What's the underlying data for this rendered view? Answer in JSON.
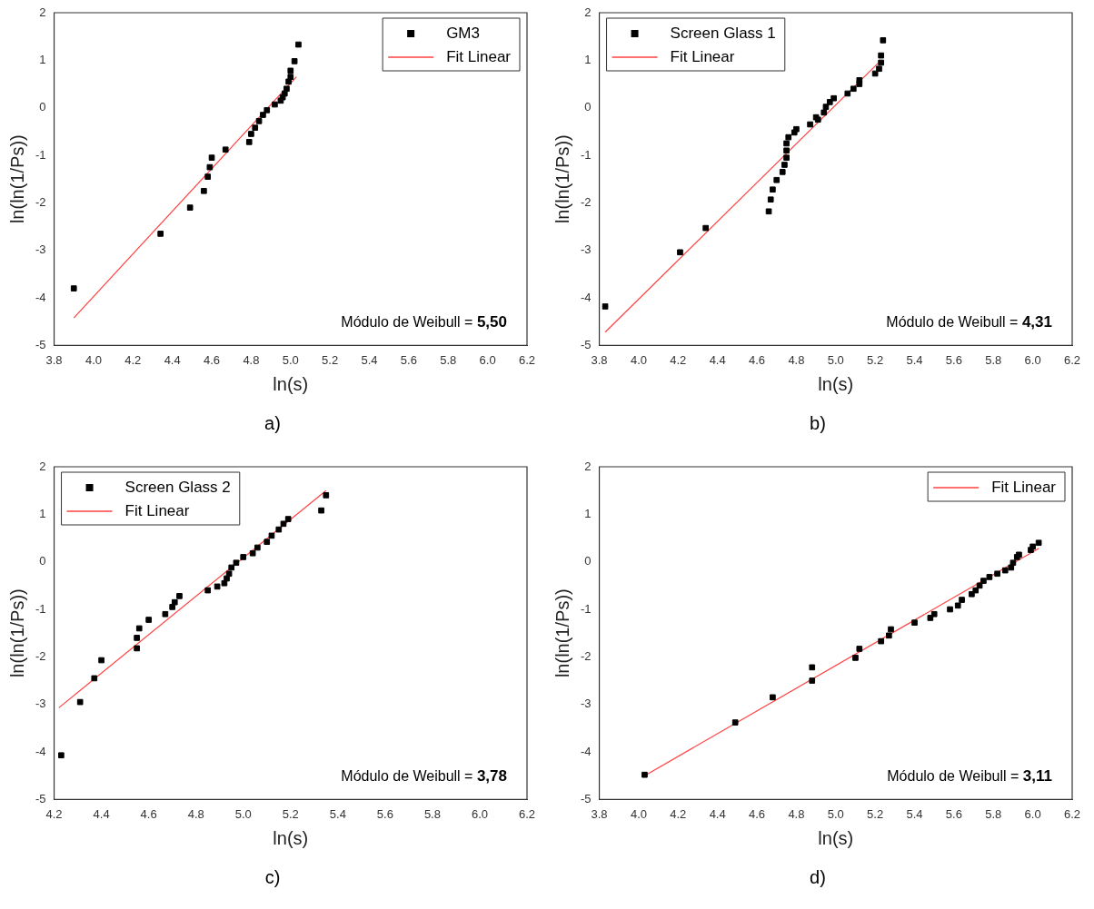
{
  "chart_data": [
    {
      "type": "scatter",
      "xlabel": "ln(s)",
      "ylabel": "ln(ln(1/Ps))",
      "annotations": [
        "Módulo de Weibull = 5,50",
        "a)"
      ],
      "legend": "top right",
      "grid": false,
      "xlim": [
        3.8,
        6.2
      ],
      "xticks": [
        3.8,
        {
          "value": 4,
          "label": "4.0"
        },
        4.2,
        4.4,
        4.6,
        4.8,
        {
          "value": 5,
          "label": "5.0"
        },
        5.2,
        5.4,
        5.6,
        5.8,
        {
          "value": 6,
          "label": "6.0"
        },
        6.2
      ],
      "ylim": [
        -5,
        2
      ],
      "yticks": [
        -5,
        -4,
        -3,
        -2,
        -1,
        0,
        1,
        2
      ],
      "series": [
        {
          "name": "GM3",
          "marker": "square",
          "color": "#000000",
          "x": [
            3.9,
            4.34,
            4.49,
            4.56,
            4.58,
            4.59,
            4.6,
            4.67,
            4.79,
            4.8,
            4.82,
            4.84,
            4.86,
            4.88,
            4.92,
            4.95,
            4.96,
            4.97,
            4.98,
            4.99,
            5.0,
            5.0,
            5.02,
            5.04
          ],
          "values": [
            -3.8,
            -2.65,
            -2.1,
            -1.75,
            -1.45,
            -1.25,
            -1.05,
            -0.88,
            -0.72,
            -0.55,
            -0.42,
            -0.28,
            -0.15,
            -0.05,
            0.07,
            0.15,
            0.22,
            0.3,
            0.4,
            0.55,
            0.65,
            0.78,
            0.98,
            1.33
          ]
        },
        {
          "name": "Fit Linear",
          "type": "line",
          "marker": "none",
          "color": "#ff4040",
          "x": [
            3.9,
            5.03
          ],
          "values": [
            -4.42,
            0.65
          ]
        }
      ]
    },
    {
      "type": "scatter",
      "xlabel": "ln(s)",
      "ylabel": "ln(ln(1/Ps))",
      "annotations": [
        "Módulo de Weibull = 4,31",
        "b)"
      ],
      "legend": "top left",
      "grid": false,
      "xlim": [
        3.8,
        6.2
      ],
      "xticks": [
        3.8,
        {
          "value": 4,
          "label": "4.0"
        },
        4.2,
        4.4,
        4.6,
        4.8,
        {
          "value": 5,
          "label": "5.0"
        },
        5.2,
        5.4,
        5.6,
        5.8,
        {
          "value": 6,
          "label": "6.0"
        },
        6.2
      ],
      "ylim": [
        -5,
        2
      ],
      "yticks": [
        -5,
        -4,
        -3,
        -2,
        -1,
        0,
        1,
        2
      ],
      "series": [
        {
          "name": "Screen Glass 1",
          "marker": "square",
          "color": "#000000",
          "x": [
            3.83,
            4.21,
            4.34,
            4.66,
            4.67,
            4.68,
            4.7,
            4.73,
            4.74,
            4.75,
            4.75,
            4.75,
            4.76,
            4.79,
            4.8,
            4.87,
            4.9,
            4.91,
            4.94,
            4.95,
            4.97,
            4.99,
            5.06,
            5.09,
            5.12,
            5.12,
            5.2,
            5.22,
            5.23,
            5.23,
            5.24
          ],
          "values": [
            -4.18,
            -3.04,
            -2.53,
            -2.18,
            -1.93,
            -1.72,
            -1.52,
            -1.35,
            -1.2,
            -1.05,
            -0.9,
            -0.75,
            -0.62,
            -0.52,
            -0.45,
            -0.35,
            -0.2,
            -0.25,
            -0.1,
            0.02,
            0.12,
            0.2,
            0.3,
            0.4,
            0.5,
            0.58,
            0.72,
            0.82,
            0.95,
            1.1,
            1.42
          ]
        },
        {
          "name": "Fit Linear",
          "type": "line",
          "marker": "none",
          "color": "#ff4040",
          "x": [
            3.83,
            5.23
          ],
          "values": [
            -4.72,
            1.0
          ]
        }
      ]
    },
    {
      "type": "scatter",
      "xlabel": "ln(s)",
      "ylabel": "ln(ln(1/Ps))",
      "annotations": [
        "Módulo de Weibull = 3,78",
        "c)"
      ],
      "legend": "top left",
      "grid": false,
      "xlim": [
        4.2,
        6.2
      ],
      "xticks": [
        4.2,
        4.4,
        4.6,
        4.8,
        {
          "value": 5,
          "label": "5.0"
        },
        5.2,
        5.4,
        5.6,
        5.8,
        {
          "value": 6,
          "label": "6.0"
        },
        6.2
      ],
      "ylim": [
        -5,
        2
      ],
      "yticks": [
        -5,
        -4,
        -3,
        -2,
        -1,
        0,
        1,
        2
      ],
      "series": [
        {
          "name": "Screen Glass 2",
          "marker": "square",
          "color": "#000000",
          "x": [
            4.23,
            4.31,
            4.37,
            4.4,
            4.55,
            4.55,
            4.56,
            4.6,
            4.67,
            4.7,
            4.71,
            4.73,
            4.85,
            4.89,
            4.92,
            4.93,
            4.94,
            4.95,
            4.97,
            5.0,
            5.04,
            5.06,
            5.1,
            5.12,
            5.15,
            5.17,
            5.19,
            5.33,
            5.35
          ],
          "values": [
            -4.07,
            -2.95,
            -2.45,
            -2.07,
            -1.82,
            -1.6,
            -1.4,
            -1.22,
            -1.1,
            -0.95,
            -0.85,
            -0.72,
            -0.6,
            -0.52,
            -0.45,
            -0.35,
            -0.25,
            -0.12,
            -0.02,
            0.1,
            0.18,
            0.3,
            0.42,
            0.55,
            0.68,
            0.8,
            0.9,
            1.08,
            1.4
          ]
        },
        {
          "name": "Fit Linear",
          "type": "line",
          "marker": "none",
          "color": "#ff4040",
          "x": [
            4.22,
            5.35
          ],
          "values": [
            -3.07,
            1.5
          ]
        }
      ]
    },
    {
      "type": "scatter",
      "xlabel": "ln(s)",
      "ylabel": "ln(ln(1/Ps))",
      "annotations": [
        "Módulo de Weibull = 3,11",
        "d)"
      ],
      "legend": "top right",
      "grid": false,
      "xlim": [
        3.8,
        6.2
      ],
      "xticks": [
        3.8,
        {
          "value": 4,
          "label": "4.0"
        },
        4.2,
        4.4,
        4.6,
        4.8,
        {
          "value": 5,
          "label": "5.0"
        },
        5.2,
        5.4,
        5.6,
        5.8,
        {
          "value": 6,
          "label": "6.0"
        },
        6.2
      ],
      "ylim": [
        -5,
        2
      ],
      "yticks": [
        -5,
        -4,
        -3,
        -2,
        -1,
        0,
        1,
        2
      ],
      "series": [
        {
          "marker": "square",
          "color": "#000000",
          "x": [
            4.03,
            4.49,
            4.68,
            4.88,
            4.88,
            5.1,
            5.12,
            5.23,
            5.27,
            5.28,
            5.4,
            5.48,
            5.5,
            5.58,
            5.62,
            5.64,
            5.69,
            5.71,
            5.73,
            5.75,
            5.78,
            5.82,
            5.86,
            5.89,
            5.9,
            5.92,
            5.93,
            5.99,
            6.0,
            6.03
          ],
          "values": [
            -4.48,
            -3.38,
            -2.85,
            -2.5,
            -2.22,
            -2.02,
            -1.83,
            -1.67,
            -1.55,
            -1.42,
            -1.28,
            -1.18,
            -1.1,
            -1.0,
            -0.92,
            -0.8,
            -0.68,
            -0.6,
            -0.5,
            -0.4,
            -0.32,
            -0.25,
            -0.18,
            -0.12,
            -0.02,
            0.1,
            0.15,
            0.25,
            0.32,
            0.4
          ]
        },
        {
          "name": "Fit Linear",
          "type": "line",
          "marker": "none",
          "color": "#ff4040",
          "x": [
            4.03,
            6.03
          ],
          "values": [
            -4.5,
            0.28
          ]
        }
      ]
    }
  ]
}
